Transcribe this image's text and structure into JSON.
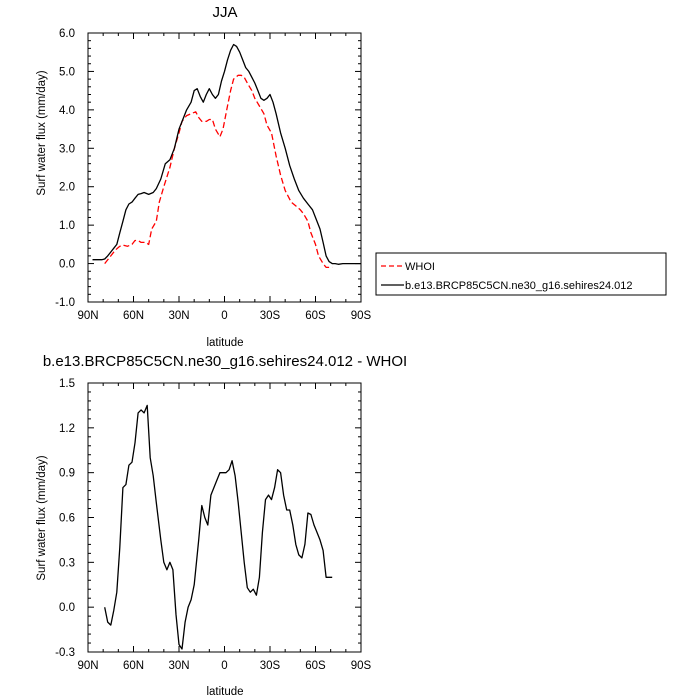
{
  "chart_data": [
    {
      "type": "line",
      "title": "JJA",
      "xlabel": "latitude",
      "ylabel": "Surf water flux (mm/day)",
      "xlim": [
        90,
        -90
      ],
      "ylim": [
        -1.0,
        6.0
      ],
      "xticks": [
        90,
        60,
        30,
        0,
        -30,
        -60,
        -90
      ],
      "xtick_labels": [
        "90N",
        "60N",
        "30N",
        "0",
        "30S",
        "60S",
        "90S"
      ],
      "yticks": [
        -1.0,
        0.0,
        1.0,
        2.0,
        3.0,
        4.0,
        5.0,
        6.0
      ],
      "ytick_labels": [
        "-1.0",
        "0.0",
        "1.0",
        "2.0",
        "3.0",
        "4.0",
        "5.0",
        "6.0"
      ],
      "legend_position": "outside-right",
      "series": [
        {
          "name": "WHOI",
          "color": "#ff0000",
          "style": "dashed",
          "x": [
            79,
            75,
            72,
            69,
            67,
            64,
            61,
            59,
            57,
            55,
            52,
            50,
            48,
            45,
            43,
            40,
            36,
            33,
            30,
            28,
            25,
            22,
            19,
            17,
            15,
            12,
            10,
            8,
            6,
            3,
            1,
            0,
            -2,
            -4,
            -6,
            -9,
            -11,
            -13,
            -15,
            -18,
            -20,
            -23,
            -26,
            -28,
            -31,
            -34,
            -37,
            -40,
            -44,
            -47,
            -50,
            -52,
            -55,
            -57,
            -60,
            -62,
            -65,
            -67,
            -69,
            -71
          ],
          "y": [
            0.0,
            0.2,
            0.35,
            0.45,
            0.48,
            0.45,
            0.5,
            0.6,
            0.6,
            0.55,
            0.55,
            0.5,
            0.9,
            1.1,
            1.6,
            2.0,
            2.5,
            3.0,
            3.4,
            3.7,
            3.85,
            3.9,
            3.95,
            3.8,
            3.7,
            3.7,
            3.75,
            3.75,
            3.5,
            3.3,
            3.5,
            3.7,
            4.1,
            4.5,
            4.8,
            4.9,
            4.9,
            4.85,
            4.7,
            4.5,
            4.3,
            4.1,
            3.9,
            3.6,
            3.4,
            2.8,
            2.3,
            1.9,
            1.6,
            1.5,
            1.4,
            1.3,
            1.1,
            0.8,
            0.5,
            0.2,
            0.0,
            -0.1,
            -0.1,
            -0.1
          ]
        },
        {
          "name": "b.e13.BRCP85C5CN.ne30_g16.sehires24.012",
          "color": "#000000",
          "style": "solid",
          "x": [
            87,
            85,
            83,
            81,
            79,
            77,
            75,
            73,
            71,
            69,
            67,
            65,
            63,
            61,
            59,
            57,
            55,
            53,
            50,
            47,
            45,
            42,
            39,
            36,
            33,
            30,
            27,
            25,
            22,
            20,
            18,
            16,
            14,
            12,
            10,
            8,
            6,
            4,
            2,
            0,
            -2,
            -4,
            -6,
            -8,
            -10,
            -12,
            -14,
            -16,
            -18,
            -20,
            -22,
            -24,
            -26,
            -28,
            -30,
            -32,
            -34,
            -37,
            -40,
            -43,
            -46,
            -49,
            -52,
            -55,
            -58,
            -60,
            -63,
            -65,
            -67,
            -69,
            -71,
            -73,
            -75,
            -78,
            -82,
            -86,
            -90
          ],
          "y": [
            0.1,
            0.1,
            0.1,
            0.1,
            0.12,
            0.2,
            0.3,
            0.4,
            0.5,
            0.8,
            1.1,
            1.4,
            1.55,
            1.6,
            1.7,
            1.8,
            1.82,
            1.85,
            1.8,
            1.85,
            1.95,
            2.2,
            2.6,
            2.7,
            3.0,
            3.5,
            3.8,
            4.0,
            4.2,
            4.5,
            4.55,
            4.35,
            4.2,
            4.4,
            4.55,
            4.4,
            4.3,
            4.4,
            4.75,
            5.0,
            5.3,
            5.55,
            5.7,
            5.65,
            5.5,
            5.3,
            5.1,
            5.0,
            4.85,
            4.7,
            4.5,
            4.3,
            4.25,
            4.3,
            4.4,
            4.2,
            3.9,
            3.4,
            3.0,
            2.55,
            2.2,
            1.9,
            1.7,
            1.55,
            1.4,
            1.2,
            0.9,
            0.55,
            0.2,
            0.05,
            0.0,
            0.0,
            -0.02,
            0.0,
            0.0,
            0.0,
            0.0
          ]
        }
      ]
    },
    {
      "type": "line",
      "title": "b.e13.BRCP85C5CN.ne30_g16.sehires24.012 - WHOI",
      "xlabel": "latitude",
      "ylabel": "Surf water flux (mm/day)",
      "xlim": [
        90,
        -90
      ],
      "ylim": [
        -0.3,
        1.5
      ],
      "xticks": [
        90,
        60,
        30,
        0,
        -30,
        -60,
        -90
      ],
      "xtick_labels": [
        "90N",
        "60N",
        "30N",
        "0",
        "30S",
        "60S",
        "90S"
      ],
      "yticks": [
        -0.3,
        0.0,
        0.3,
        0.6,
        0.9,
        1.2,
        1.5
      ],
      "ytick_labels": [
        "-0.3",
        "0.0",
        "0.3",
        "0.6",
        "0.9",
        "1.2",
        "1.5"
      ],
      "series": [
        {
          "color": "#000000",
          "style": "solid",
          "x": [
            79,
            77,
            75,
            73,
            71,
            69,
            67,
            65,
            63,
            61,
            59,
            57,
            55,
            53,
            51,
            49,
            47,
            45,
            42,
            40,
            38,
            36,
            34,
            32,
            30,
            28,
            26,
            24,
            22,
            20,
            17,
            15,
            13,
            11,
            9,
            7,
            5,
            3,
            1,
            -1,
            -3,
            -5,
            -7,
            -9,
            -11,
            -13,
            -15,
            -17,
            -19,
            -21,
            -23,
            -25,
            -27,
            -29,
            -31,
            -33,
            -35,
            -37,
            -39,
            -41,
            -43,
            -45,
            -47,
            -49,
            -51,
            -53,
            -55,
            -57,
            -59,
            -61,
            -63,
            -65,
            -67,
            -69,
            -71
          ],
          "y": [
            0.0,
            -0.1,
            -0.12,
            -0.02,
            0.1,
            0.4,
            0.8,
            0.82,
            0.95,
            0.97,
            1.1,
            1.3,
            1.32,
            1.3,
            1.35,
            1.0,
            0.88,
            0.7,
            0.45,
            0.3,
            0.25,
            0.3,
            0.25,
            -0.05,
            -0.25,
            -0.28,
            -0.1,
            0.0,
            0.05,
            0.15,
            0.45,
            0.68,
            0.6,
            0.55,
            0.75,
            0.8,
            0.85,
            0.9,
            0.9,
            0.9,
            0.92,
            0.98,
            0.88,
            0.7,
            0.5,
            0.3,
            0.13,
            0.1,
            0.12,
            0.08,
            0.2,
            0.5,
            0.72,
            0.75,
            0.72,
            0.8,
            0.92,
            0.9,
            0.75,
            0.65,
            0.65,
            0.55,
            0.42,
            0.35,
            0.33,
            0.42,
            0.63,
            0.62,
            0.55,
            0.5,
            0.45,
            0.38,
            0.2,
            0.2,
            0.2
          ]
        }
      ]
    }
  ]
}
